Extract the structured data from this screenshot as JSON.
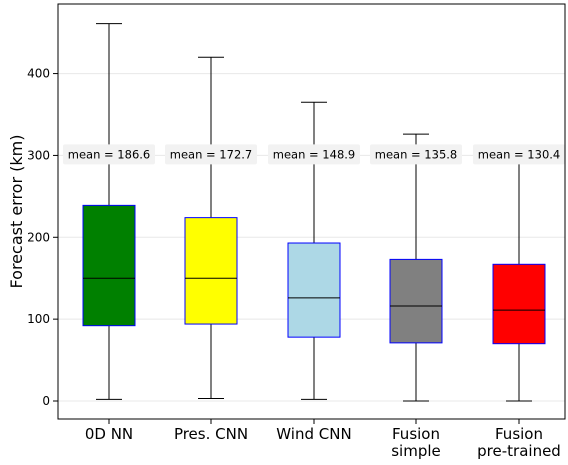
{
  "chart_data": {
    "type": "box",
    "ylabel": "Forecast error (km)",
    "ylim": [
      -22,
      485
    ],
    "yticks": [
      0,
      100,
      200,
      300,
      400
    ],
    "grid": "horizontal",
    "categories": [
      {
        "lines": [
          "0D NN"
        ]
      },
      {
        "lines": [
          "Pres. CNN"
        ]
      },
      {
        "lines": [
          "Wind CNN"
        ]
      },
      {
        "lines": [
          "Fusion",
          "simple"
        ]
      },
      {
        "lines": [
          "Fusion",
          "pre-trained"
        ]
      }
    ],
    "boxes": [
      {
        "whisker_low": 2,
        "q1": 92,
        "median": 150,
        "q3": 239,
        "whisker_high": 461,
        "mean": 186.6,
        "mean_label": "mean = 186.6",
        "fill": "#008000",
        "edge": "#0000ff"
      },
      {
        "whisker_low": 3,
        "q1": 94,
        "median": 150,
        "q3": 224,
        "whisker_high": 420,
        "mean": 172.7,
        "mean_label": "mean = 172.7",
        "fill": "#ffff00",
        "edge": "#0000ff"
      },
      {
        "whisker_low": 2,
        "q1": 78,
        "median": 126,
        "q3": 193,
        "whisker_high": 365,
        "mean": 148.9,
        "mean_label": "mean = 148.9",
        "fill": "#add8e6",
        "edge": "#0000ff"
      },
      {
        "whisker_low": 0,
        "q1": 71,
        "median": 116,
        "q3": 173,
        "whisker_high": 326,
        "mean": 135.8,
        "mean_label": "mean = 135.8",
        "fill": "#808080",
        "edge": "#0000ff"
      },
      {
        "whisker_low": 0,
        "q1": 70,
        "median": 111,
        "q3": 167,
        "whisker_high": 312,
        "mean": 130.4,
        "mean_label": "mean = 130.4",
        "fill": "#ff0000",
        "edge": "#0000ff"
      }
    ],
    "annotation_y": 294,
    "annotation_bg": "#f2f2f2"
  }
}
